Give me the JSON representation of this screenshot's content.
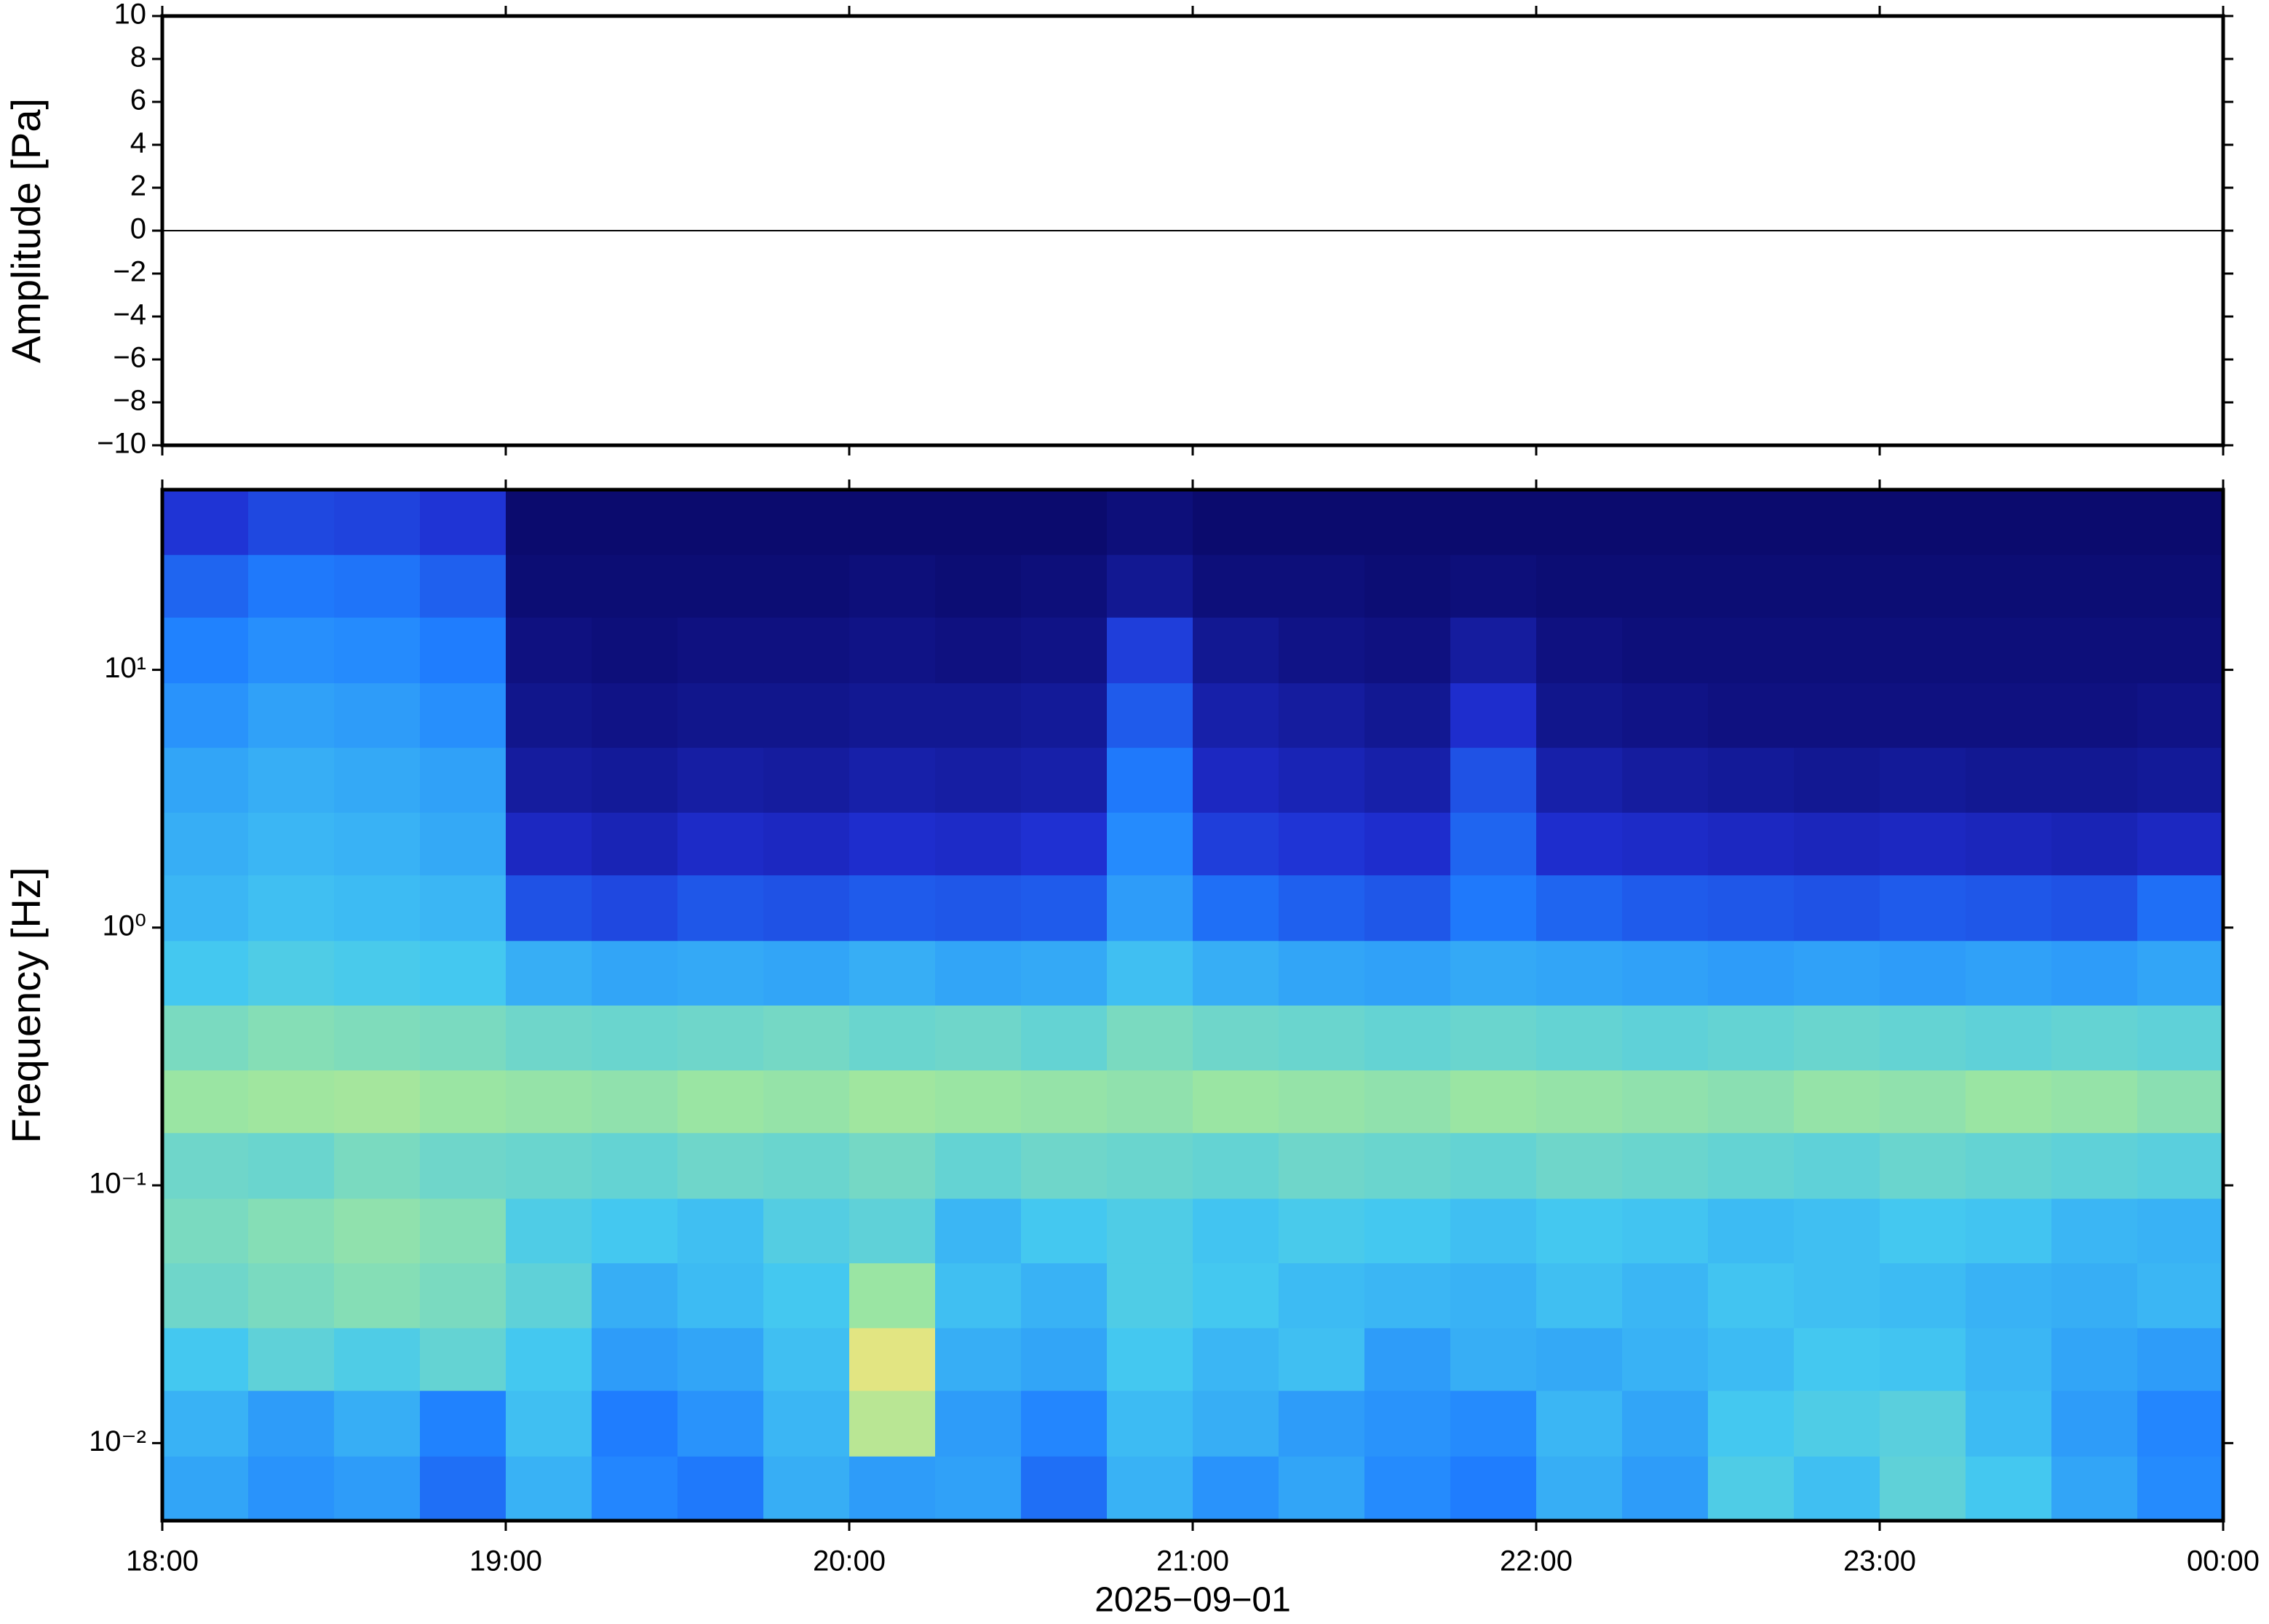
{
  "chart_data": [
    {
      "type": "line",
      "ylabel": "Amplitude [Pa]",
      "x": [
        18,
        19,
        20,
        21,
        22,
        23,
        24
      ],
      "series": [
        {
          "color": "#000000",
          "values": [
            0,
            0,
            0,
            0,
            0,
            0,
            0
          ]
        }
      ],
      "xlim": [
        18,
        24
      ],
      "xticks": [
        18,
        19,
        20,
        21,
        22,
        23,
        24
      ],
      "ylim": [
        -10,
        10
      ],
      "yticks": [
        {
          "value": -10,
          "label": "−10"
        },
        {
          "value": -8,
          "label": "−8"
        },
        {
          "value": -6,
          "label": "−6"
        },
        {
          "value": -4,
          "label": "−4"
        },
        {
          "value": -2,
          "label": "−2"
        },
        0,
        2,
        4,
        6,
        8,
        10
      ]
    },
    {
      "type": "heatmap",
      "ylabel": "Frequency [Hz]",
      "xlabel": "2025−09−01",
      "log_y": true,
      "xlim": [
        18,
        24
      ],
      "xticks": [
        {
          "value": 18,
          "label": "18:00"
        },
        {
          "value": 19,
          "label": "19:00"
        },
        {
          "value": 20,
          "label": "20:00"
        },
        {
          "value": 21,
          "label": "21:00"
        },
        {
          "value": 22,
          "label": "22:00"
        },
        {
          "value": 23,
          "label": "23:00"
        },
        {
          "value": 24,
          "label": "00:00"
        }
      ],
      "ylim": [
        0.005,
        50
      ],
      "yticks": [
        {
          "value": 0.01,
          "label": "10⁻²"
        },
        {
          "value": 0.1,
          "label": "10⁻¹"
        },
        {
          "value": 1,
          "label": "10⁰"
        },
        {
          "value": 10,
          "label": "10¹"
        }
      ],
      "colormap": [
        "#0b0b6e",
        "#1f2ed1",
        "#1f7fff",
        "#44c8f0",
        "#9ee6a0",
        "#f3e57a",
        "#f9a448"
      ],
      "x_bins": [
        18,
        18.25,
        18.5,
        18.75,
        19,
        19.25,
        19.5,
        19.75,
        20,
        20.25,
        20.5,
        20.75,
        21,
        21.25,
        21.5,
        21.75,
        22,
        22.25,
        22.5,
        22.75,
        23,
        23.25,
        23.5,
        23.75,
        24
      ],
      "y_bins": [
        0.005,
        0.0089,
        0.016,
        0.028,
        0.05,
        0.089,
        0.16,
        0.28,
        0.5,
        0.89,
        1.6,
        2.8,
        5,
        8.9,
        16,
        28,
        50
      ],
      "values": [
        [
          0.42,
          0.38,
          0.4,
          0.3,
          0.45,
          0.35,
          0.32,
          0.44,
          0.4,
          0.41,
          0.3,
          0.45,
          0.38,
          0.42,
          0.36,
          0.33,
          0.44,
          0.4,
          0.52,
          0.48,
          0.55,
          0.5,
          0.42,
          0.36
        ],
        [
          0.45,
          0.4,
          0.44,
          0.34,
          0.48,
          0.33,
          0.38,
          0.46,
          0.72,
          0.4,
          0.35,
          0.47,
          0.44,
          0.4,
          0.38,
          0.36,
          0.46,
          0.42,
          0.5,
          0.52,
          0.54,
          0.47,
          0.4,
          0.35
        ],
        [
          0.5,
          0.55,
          0.52,
          0.56,
          0.5,
          0.4,
          0.42,
          0.48,
          0.8,
          0.44,
          0.42,
          0.5,
          0.46,
          0.48,
          0.4,
          0.44,
          0.43,
          0.45,
          0.47,
          0.5,
          0.49,
          0.46,
          0.42,
          0.4
        ],
        [
          0.58,
          0.6,
          0.62,
          0.6,
          0.55,
          0.44,
          0.47,
          0.5,
          0.66,
          0.48,
          0.45,
          0.52,
          0.5,
          0.47,
          0.46,
          0.45,
          0.48,
          0.46,
          0.49,
          0.48,
          0.47,
          0.45,
          0.44,
          0.46
        ],
        [
          0.6,
          0.62,
          0.64,
          0.62,
          0.52,
          0.5,
          0.48,
          0.53,
          0.55,
          0.46,
          0.5,
          0.52,
          0.49,
          0.51,
          0.5,
          0.48,
          0.5,
          0.49,
          0.47,
          0.48,
          0.5,
          0.49,
          0.46,
          0.45
        ],
        [
          0.58,
          0.57,
          0.6,
          0.58,
          0.57,
          0.56,
          0.58,
          0.57,
          0.59,
          0.56,
          0.58,
          0.57,
          0.56,
          0.58,
          0.57,
          0.56,
          0.58,
          0.57,
          0.56,
          0.55,
          0.57,
          0.56,
          0.55,
          0.54
        ],
        [
          0.66,
          0.67,
          0.68,
          0.66,
          0.65,
          0.64,
          0.66,
          0.65,
          0.67,
          0.66,
          0.65,
          0.64,
          0.66,
          0.65,
          0.64,
          0.66,
          0.65,
          0.64,
          0.63,
          0.65,
          0.64,
          0.66,
          0.65,
          0.63
        ],
        [
          0.6,
          0.62,
          0.61,
          0.6,
          0.58,
          0.57,
          0.58,
          0.59,
          0.57,
          0.58,
          0.56,
          0.6,
          0.58,
          0.57,
          0.56,
          0.57,
          0.56,
          0.55,
          0.56,
          0.57,
          0.56,
          0.55,
          0.56,
          0.55
        ],
        [
          0.5,
          0.52,
          0.51,
          0.5,
          0.44,
          0.42,
          0.43,
          0.42,
          0.44,
          0.42,
          0.43,
          0.48,
          0.44,
          0.42,
          0.41,
          0.43,
          0.42,
          0.41,
          0.4,
          0.41,
          0.4,
          0.41,
          0.4,
          0.42
        ],
        [
          0.46,
          0.48,
          0.47,
          0.46,
          0.24,
          0.22,
          0.25,
          0.24,
          0.26,
          0.25,
          0.26,
          0.4,
          0.3,
          0.27,
          0.25,
          0.32,
          0.28,
          0.26,
          0.25,
          0.24,
          0.26,
          0.25,
          0.24,
          0.3
        ],
        [
          0.44,
          0.46,
          0.45,
          0.43,
          0.14,
          0.12,
          0.15,
          0.14,
          0.16,
          0.15,
          0.17,
          0.36,
          0.2,
          0.18,
          0.16,
          0.28,
          0.16,
          0.15,
          0.14,
          0.13,
          0.14,
          0.13,
          0.12,
          0.14
        ],
        [
          0.42,
          0.44,
          0.43,
          0.41,
          0.08,
          0.07,
          0.09,
          0.08,
          0.1,
          0.09,
          0.1,
          0.32,
          0.14,
          0.12,
          0.1,
          0.24,
          0.1,
          0.08,
          0.07,
          0.06,
          0.07,
          0.06,
          0.06,
          0.07
        ],
        [
          0.38,
          0.41,
          0.4,
          0.37,
          0.05,
          0.04,
          0.05,
          0.05,
          0.06,
          0.06,
          0.07,
          0.26,
          0.1,
          0.08,
          0.06,
          0.16,
          0.05,
          0.04,
          0.03,
          0.03,
          0.03,
          0.03,
          0.03,
          0.04
        ],
        [
          0.34,
          0.37,
          0.36,
          0.33,
          0.03,
          0.02,
          0.03,
          0.03,
          0.04,
          0.03,
          0.04,
          0.2,
          0.06,
          0.04,
          0.03,
          0.08,
          0.03,
          0.02,
          0.02,
          0.02,
          0.02,
          0.02,
          0.02,
          0.02
        ],
        [
          0.28,
          0.32,
          0.31,
          0.27,
          0.01,
          0.01,
          0.01,
          0.01,
          0.02,
          0.01,
          0.02,
          0.06,
          0.02,
          0.02,
          0.01,
          0.02,
          0.01,
          0.01,
          0.01,
          0.01,
          0.01,
          0.01,
          0.01,
          0.01
        ],
        [
          0.18,
          0.22,
          0.21,
          0.18,
          0.0,
          0.0,
          0.0,
          0.0,
          0.0,
          0.0,
          0.0,
          0.02,
          0.0,
          0.0,
          0.0,
          0.0,
          0.0,
          0.0,
          0.0,
          0.0,
          0.0,
          0.0,
          0.0,
          0.0
        ]
      ]
    }
  ]
}
